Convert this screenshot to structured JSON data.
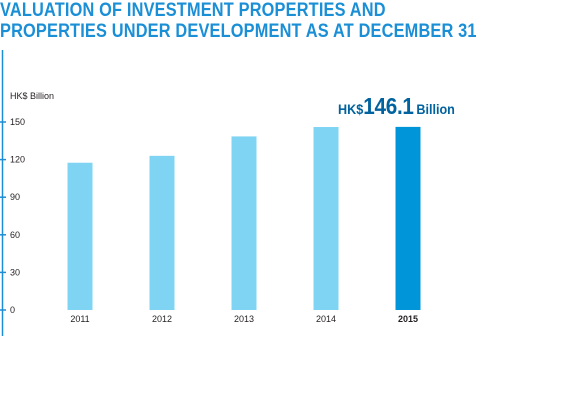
{
  "title_lines": [
    "VALUATION OF INVESTMENT PROPERTIES AND",
    "PROPERTIES UNDER DEVELOPMENT AS AT DECEMBER 31"
  ],
  "callout": {
    "prefix": "HK$",
    "value": "146.1",
    "unit": "Billion"
  },
  "colors": {
    "title": "#1a8fd6",
    "axis": "#1a8fd6",
    "bar": "#7fd4f4",
    "bar_highlight": "#0094d8",
    "callout": "#00629e"
  },
  "chart_data": {
    "type": "bar",
    "categories": [
      "2011",
      "2012",
      "2013",
      "2014",
      "2015"
    ],
    "values": [
      117.5,
      123,
      138.5,
      146,
      146.1
    ],
    "highlight_category": "2015",
    "ylabel": "HK$ Billion",
    "ylim": [
      0,
      150
    ],
    "yticks": [
      0,
      30,
      60,
      90,
      120,
      150
    ],
    "grid": false,
    "legend": "none"
  }
}
